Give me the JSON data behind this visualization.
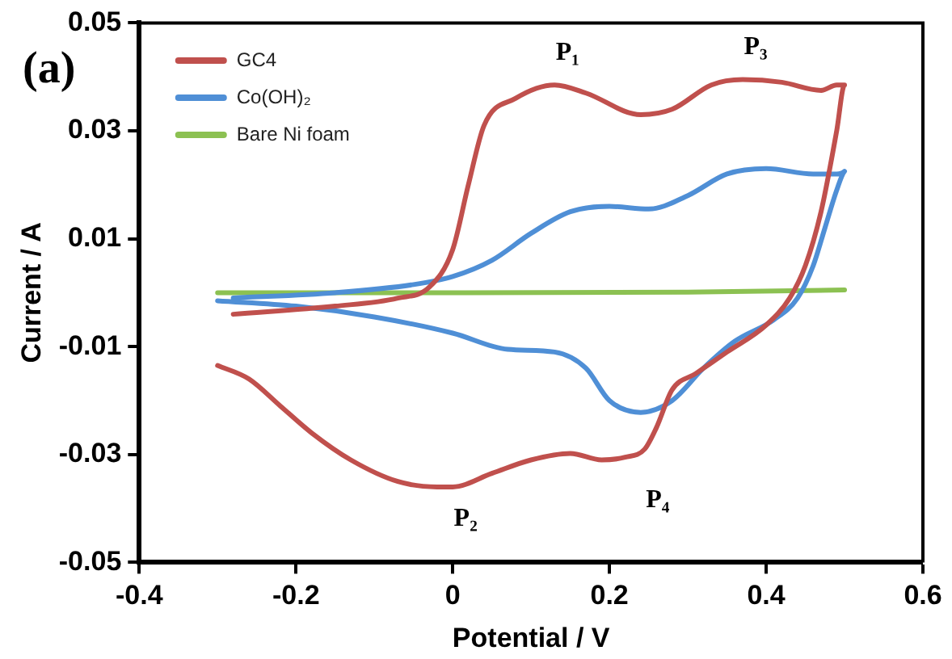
{
  "chart_data": {
    "type": "line",
    "xlabel": "Potential / V",
    "ylabel": "Current / A",
    "xlim": [
      -0.4,
      0.6
    ],
    "xticks": [
      -0.4,
      -0.2,
      0,
      0.2,
      0.4,
      0.6
    ],
    "ylim": [
      -0.05,
      0.05
    ],
    "yticks": [
      -0.05,
      -0.03,
      -0.01,
      0.01,
      0.03,
      0.05
    ],
    "legend": "top left",
    "marker": "none",
    "line_style": "solid",
    "series": [
      {
        "name": "GC4",
        "color": "#c0504d",
        "x": [
          -0.28,
          -0.15,
          -0.07,
          -0.03,
          0,
          0.02,
          0.04,
          0.08,
          0.13,
          0.17,
          0.24,
          0.28,
          0.33,
          0.37,
          0.42,
          0.47,
          0.49,
          0.5,
          0.49,
          0.47,
          0.45,
          0.43,
          0.4,
          0.35,
          0.31,
          0.28,
          0.26,
          0.245,
          0.22,
          0.19,
          0.15,
          0.1,
          0.05,
          0,
          -0.02,
          -0.07,
          -0.13,
          -0.18,
          -0.22,
          -0.26,
          -0.3
        ],
        "values": [
          -0.004,
          -0.0025,
          -0.001,
          0.001,
          0.008,
          0.02,
          0.031,
          0.036,
          0.0385,
          0.037,
          0.033,
          0.034,
          0.0385,
          0.0395,
          0.039,
          0.0375,
          0.0385,
          0.0385,
          0.03,
          0.015,
          0.005,
          -0.001,
          -0.006,
          -0.011,
          -0.015,
          -0.018,
          -0.025,
          -0.029,
          -0.0305,
          -0.031,
          -0.0298,
          -0.031,
          -0.0335,
          -0.036,
          -0.036,
          -0.035,
          -0.031,
          -0.026,
          -0.021,
          -0.016,
          -0.0135
        ]
      },
      {
        "name": "Co(OH)₂",
        "color": "#4f8fd6",
        "x": [
          -0.28,
          -0.15,
          -0.05,
          0,
          0.05,
          0.1,
          0.15,
          0.2,
          0.25,
          0.3,
          0.35,
          0.4,
          0.46,
          0.49,
          0.5,
          0.49,
          0.475,
          0.46,
          0.44,
          0.41,
          0.36,
          0.32,
          0.28,
          0.24,
          0.2,
          0.17,
          0.13,
          0.07,
          0,
          -0.1,
          -0.2,
          -0.3
        ],
        "values": [
          -0.001,
          0,
          0.0015,
          0.003,
          0.006,
          0.011,
          0.015,
          0.016,
          0.0155,
          0.018,
          0.022,
          0.023,
          0.022,
          0.022,
          0.0225,
          0.019,
          0.012,
          0.005,
          -0.001,
          -0.005,
          -0.009,
          -0.014,
          -0.02,
          -0.0222,
          -0.02,
          -0.014,
          -0.011,
          -0.0105,
          -0.0075,
          -0.0045,
          -0.0025,
          -0.0015
        ]
      },
      {
        "name": "Bare Ni foam",
        "color": "#8cc152",
        "x": [
          -0.3,
          0,
          0.3,
          0.5
        ],
        "values": [
          0,
          0,
          0.0001,
          0.0005
        ]
      }
    ],
    "annotations": [
      "(a)",
      {
        "text": "P₁",
        "x": 0.13,
        "y": 0.0385
      },
      {
        "text": "P₃",
        "x": 0.37,
        "y": 0.0395
      },
      {
        "text": "P₂",
        "x": 0,
        "y": -0.036
      },
      {
        "text": "P₄",
        "x": 0.245,
        "y": -0.029
      }
    ]
  }
}
